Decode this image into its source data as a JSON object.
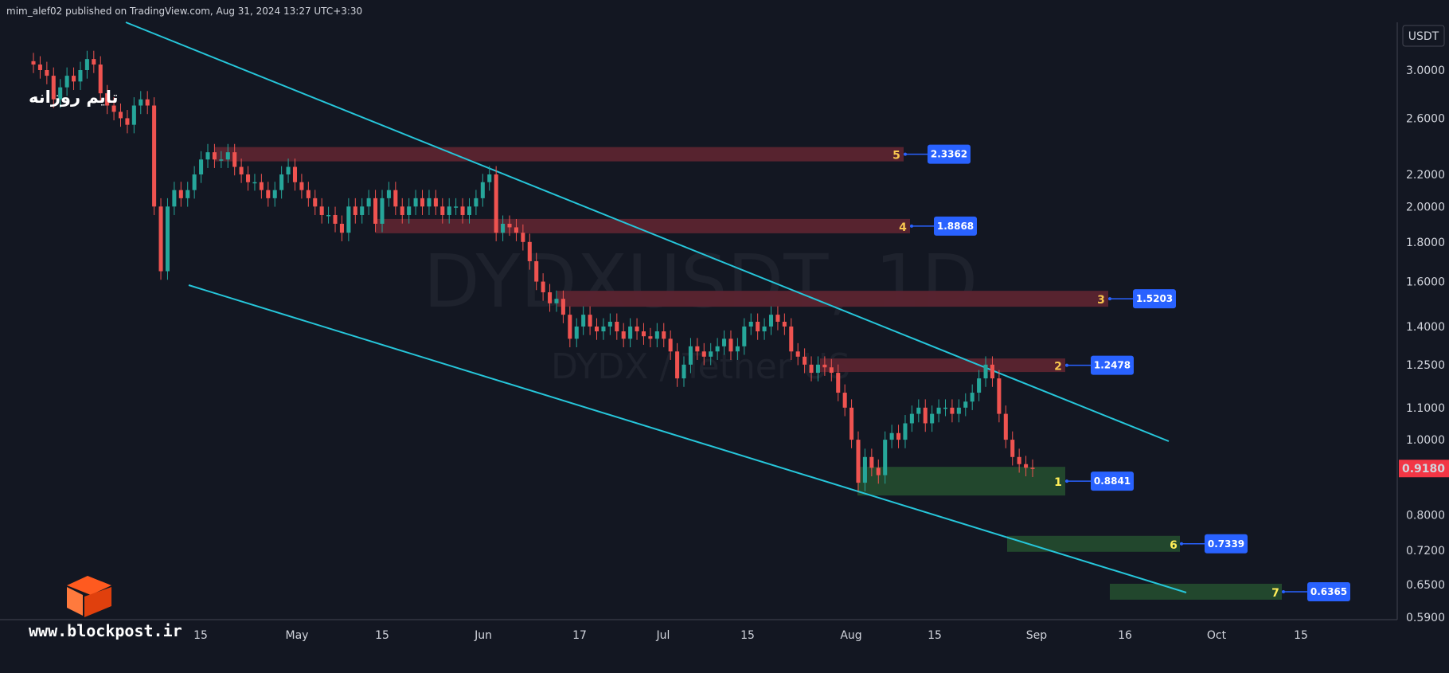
{
  "header": {
    "publisher": "mim_alef02 published on TradingView.com, Aug 31, 2024 13:27 UTC+3:30"
  },
  "note": "تایم روزانه",
  "watermark": {
    "symbol": "DYDXUSDT, 1D",
    "name": "DYDX / Tether US"
  },
  "logo": {
    "text": "www.blockpost.ir"
  },
  "colors": {
    "bg": "#131722",
    "up": "#26a69a",
    "down": "#ef5350",
    "trend": "#26c6da",
    "resist": "#5b2430",
    "support": "#234a2e",
    "label": "#2962ff",
    "price": "#f23645"
  },
  "chart_data": {
    "type": "candlestick",
    "currency": "USDT",
    "last_price": "0.9180",
    "price_ticks": [
      "3.0000",
      "2.6000",
      "2.2000",
      "2.0000",
      "1.8000",
      "1.6000",
      "1.4000",
      "1.2500",
      "1.1000",
      "1.0000",
      "0.8000",
      "0.7200",
      "0.6500",
      "0.5900"
    ],
    "time_ticks": [
      "15",
      "May",
      "15",
      "Jun",
      "17",
      "Jul",
      "15",
      "Aug",
      "15",
      "Sep",
      "16",
      "Oct",
      "15"
    ],
    "zones": [
      {
        "num": "5",
        "price": "2.3362",
        "kind": "resistance"
      },
      {
        "num": "4",
        "price": "1.8868",
        "kind": "resistance"
      },
      {
        "num": "3",
        "price": "1.5203",
        "kind": "resistance"
      },
      {
        "num": "2",
        "price": "1.2478",
        "kind": "resistance"
      },
      {
        "num": "1",
        "price": "0.8841",
        "kind": "support"
      },
      {
        "num": "6",
        "price": "0.7339",
        "kind": "support"
      },
      {
        "num": "7",
        "price": "0.6365",
        "kind": "support"
      }
    ],
    "series": [
      3.05,
      3.0,
      2.95,
      2.75,
      2.85,
      2.95,
      2.9,
      3.0,
      3.1,
      3.05,
      2.8,
      2.7,
      2.65,
      2.6,
      2.55,
      2.7,
      2.75,
      2.7,
      2.0,
      1.65,
      2.0,
      2.1,
      2.05,
      2.1,
      2.2,
      2.3,
      2.35,
      2.3,
      2.3,
      2.35,
      2.25,
      2.2,
      2.15,
      2.15,
      2.1,
      2.05,
      2.1,
      2.2,
      2.25,
      2.15,
      2.1,
      2.05,
      2.0,
      1.95,
      1.95,
      1.9,
      1.85,
      2.0,
      1.95,
      2.0,
      2.05,
      1.9,
      2.05,
      2.1,
      2.0,
      1.95,
      2.0,
      2.05,
      2.0,
      2.05,
      2.0,
      1.95,
      2.0,
      2.0,
      1.95,
      2.0,
      2.05,
      2.15,
      2.2,
      1.85,
      1.9,
      1.88,
      1.85,
      1.8,
      1.7,
      1.6,
      1.55,
      1.5,
      1.52,
      1.45,
      1.35,
      1.4,
      1.45,
      1.4,
      1.38,
      1.4,
      1.42,
      1.38,
      1.35,
      1.4,
      1.38,
      1.36,
      1.35,
      1.38,
      1.35,
      1.3,
      1.2,
      1.25,
      1.32,
      1.3,
      1.28,
      1.3,
      1.32,
      1.35,
      1.3,
      1.32,
      1.4,
      1.42,
      1.38,
      1.4,
      1.45,
      1.42,
      1.4,
      1.3,
      1.28,
      1.25,
      1.22,
      1.25,
      1.24,
      1.22,
      1.15,
      1.1,
      1.0,
      0.88,
      0.95,
      0.92,
      0.9,
      1.0,
      1.02,
      1.0,
      1.05,
      1.08,
      1.1,
      1.05,
      1.08,
      1.1,
      1.1,
      1.08,
      1.1,
      1.12,
      1.15,
      1.2,
      1.25,
      1.2,
      1.08,
      1.0,
      0.95,
      0.93,
      0.92,
      0.918
    ]
  }
}
